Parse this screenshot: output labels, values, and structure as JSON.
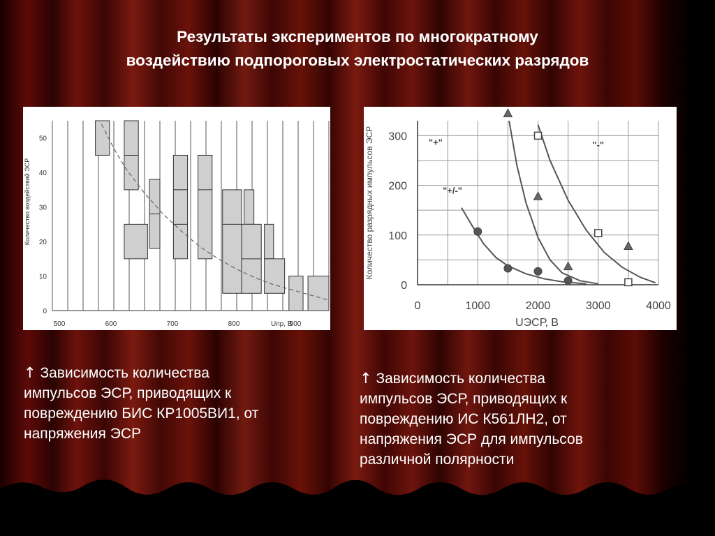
{
  "slide": {
    "title_line1": "Результаты экспериментов по многократному",
    "title_line2": "воздействию подпороговых электростатических разрядов",
    "caption_left_arrow": "↑",
    "caption_left_l1": " Зависимость количества",
    "caption_left_l2": "импульсов ЭСР, приводящих к",
    "caption_left_l3": "повреждению БИС КР1005ВИ1, от",
    "caption_left_l4": "напряжения ЭСР",
    "caption_right_arrow": "↑",
    "caption_right_l1": " Зависимость количества",
    "caption_right_l2": "импульсов ЭСР, приводящих к",
    "caption_right_l3": "повреждению ИС К561ЛН2, от",
    "caption_right_l4": "напряжения ЭСР для импульсов",
    "caption_right_l5": "различной полярности"
  },
  "chart_data": [
    {
      "type": "bar",
      "subtype": "range-boxes",
      "xlabel": "Uпр, В",
      "ylabel": "Количество воздействий ЭСР",
      "xlim": [
        500,
        950
      ],
      "ylim": [
        0,
        55
      ],
      "x_ticks": [
        500,
        600,
        700,
        800,
        900
      ],
      "y_ticks": [
        0,
        10,
        20,
        30,
        40,
        50
      ],
      "grid": "vertical",
      "boxes": [
        {
          "x0": 570,
          "x1": 593,
          "y0": 45,
          "y1": 55,
          "mid": null
        },
        {
          "x0": 617,
          "x1": 640,
          "y0": 35,
          "y1": 55,
          "mid": 45
        },
        {
          "x0": 617,
          "x1": 655,
          "y0": 15,
          "y1": 25,
          "mid": null
        },
        {
          "x0": 658,
          "x1": 675,
          "y0": 18,
          "y1": 38,
          "mid": 28
        },
        {
          "x0": 697,
          "x1": 720,
          "y0": 35,
          "y1": 45,
          "mid": null
        },
        {
          "x0": 697,
          "x1": 720,
          "y0": 15,
          "y1": 35,
          "mid": 25
        },
        {
          "x0": 737,
          "x1": 760,
          "y0": 15,
          "y1": 45,
          "mid": 35
        },
        {
          "x0": 777,
          "x1": 808,
          "y0": 5,
          "y1": 35,
          "mid": 25
        },
        {
          "x0": 812,
          "x1": 828,
          "y0": 25,
          "y1": 35,
          "mid": null
        },
        {
          "x0": 808,
          "x1": 840,
          "y0": 5,
          "y1": 25,
          "mid": 15
        },
        {
          "x0": 845,
          "x1": 860,
          "y0": 15,
          "y1": 25,
          "mid": null
        },
        {
          "x0": 845,
          "x1": 878,
          "y0": 5,
          "y1": 15,
          "mid": null
        },
        {
          "x0": 885,
          "x1": 908,
          "y0": 0,
          "y1": 10,
          "mid": null
        },
        {
          "x0": 916,
          "x1": 950,
          "y0": 0,
          "y1": 10,
          "mid": null
        }
      ],
      "trend_line": {
        "style": "dashed",
        "x": [
          580,
          600,
          620,
          650,
          680,
          710,
          740,
          770,
          800,
          830,
          860,
          890,
          920,
          950
        ],
        "y": [
          54,
          47,
          41,
          34,
          28,
          23,
          18.5,
          15,
          12,
          9.5,
          7.5,
          6,
          4.5,
          3
        ]
      }
    },
    {
      "type": "line",
      "xlabel": "UЭСР, В",
      "ylabel": "Количество разрядных импульсов ЭСР",
      "xlim": [
        0,
        4000
      ],
      "ylim": [
        0,
        330
      ],
      "x_ticks": [
        0,
        1000,
        2000,
        3000,
        4000
      ],
      "y_ticks": [
        0,
        100,
        200,
        300
      ],
      "grid": "both",
      "series": [
        {
          "name": "\"+/-\"",
          "marker": "circle",
          "points_x": [
            1000,
            1500,
            2000,
            2500
          ],
          "points_y": [
            107,
            33,
            27,
            8
          ],
          "curve_x": [
            730,
            900,
            1100,
            1300,
            1500,
            1800,
            2100,
            2400,
            2800
          ],
          "curve_y": [
            155,
            120,
            82,
            55,
            38,
            22,
            12,
            6,
            2
          ]
        },
        {
          "name": "\"+\"",
          "marker": "triangle",
          "points_x": [
            1500,
            2000,
            2500,
            3500
          ],
          "points_y": [
            345,
            178,
            37,
            78
          ],
          "curve_x": [
            1520,
            1650,
            1800,
            2000,
            2200,
            2400,
            2700,
            3000
          ],
          "curve_y": [
            330,
            240,
            165,
            95,
            50,
            24,
            8,
            2
          ]
        },
        {
          "name": "\"-\"",
          "marker": "square",
          "points_x": [
            2000,
            3000,
            3500
          ],
          "points_y": [
            300,
            104,
            5
          ],
          "curve_x": [
            2000,
            2200,
            2500,
            2800,
            3100,
            3400,
            3700,
            3950
          ],
          "curve_y": [
            322,
            250,
            170,
            110,
            65,
            35,
            15,
            4
          ]
        }
      ]
    }
  ]
}
